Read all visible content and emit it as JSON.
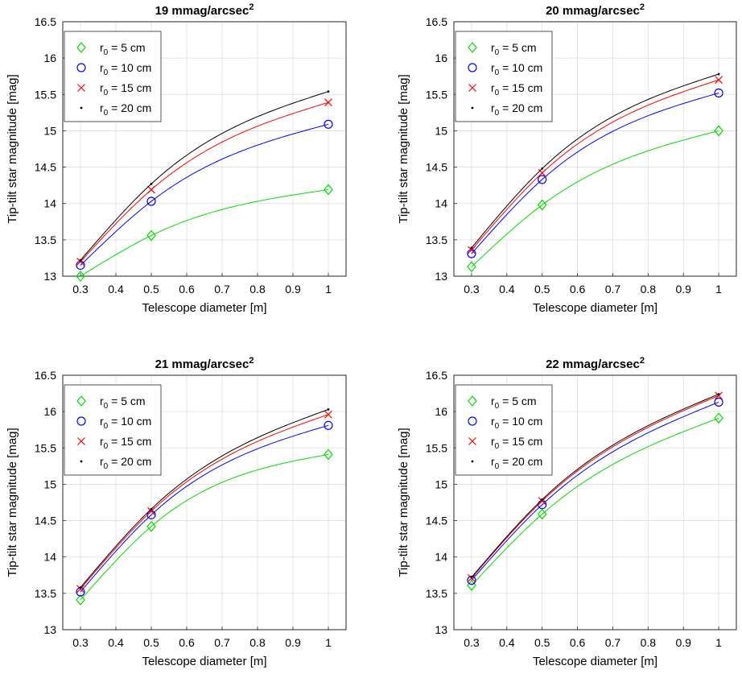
{
  "chart_data": [
    {
      "type": "line",
      "title": "19 mmag/arcsec",
      "title_sup": "2",
      "xlabel": "Telescope diameter [m]",
      "ylabel": "Tip-tilt star magnitude [mag]",
      "x": [
        0.3,
        0.5,
        1.0
      ],
      "xlim": [
        0.25,
        1.05
      ],
      "ylim": [
        13,
        16.5
      ],
      "xticks": [
        0.3,
        0.4,
        0.5,
        0.6,
        0.7,
        0.8,
        0.9,
        1
      ],
      "yticks": [
        13,
        13.5,
        14,
        14.5,
        15,
        15.5,
        16,
        16.5
      ],
      "xtick_labels": [
        "0.3",
        "0.4",
        "0.5",
        "0.6",
        "0.7",
        "0.8",
        "0.9",
        "1"
      ],
      "ytick_labels": [
        "13",
        "13.5",
        "14",
        "14.5",
        "15",
        "15.5",
        "16",
        "16.5"
      ],
      "grid": true,
      "legend_position": "top-left",
      "series": [
        {
          "name": "r0 = 5 cm",
          "legend_main": "r",
          "legend_sub": "0",
          "legend_rest": " = 5 cm",
          "marker": "diamond",
          "color": "#00dd00",
          "values": [
            13.0,
            13.56,
            14.19
          ]
        },
        {
          "name": "r0 = 10 cm",
          "legend_main": "r",
          "legend_sub": "0",
          "legend_rest": " = 10 cm",
          "marker": "circle",
          "color": "#0000ff",
          "values": [
            13.15,
            14.03,
            15.09
          ]
        },
        {
          "name": "r0 = 15 cm",
          "legend_main": "r",
          "legend_sub": "0",
          "legend_rest": " = 15 cm",
          "marker": "x",
          "color": "#ff0000",
          "values": [
            13.2,
            14.19,
            15.39
          ]
        },
        {
          "name": "r0 = 20 cm",
          "legend_main": "r",
          "legend_sub": "0",
          "legend_rest": " = 20 cm",
          "marker": "dot",
          "color": "#000000",
          "values": [
            13.22,
            14.27,
            15.54
          ]
        }
      ]
    },
    {
      "type": "line",
      "title": "20 mmag/arcsec",
      "title_sup": "2",
      "xlabel": "Telescope diameter [m]",
      "ylabel": "Tip-tilt star magnitude [mag]",
      "x": [
        0.3,
        0.5,
        1.0
      ],
      "xlim": [
        0.25,
        1.05
      ],
      "ylim": [
        13,
        16.5
      ],
      "xticks": [
        0.3,
        0.4,
        0.5,
        0.6,
        0.7,
        0.8,
        0.9,
        1
      ],
      "yticks": [
        13,
        13.5,
        14,
        14.5,
        15,
        15.5,
        16,
        16.5
      ],
      "xtick_labels": [
        "0.3",
        "0.4",
        "0.5",
        "0.6",
        "0.7",
        "0.8",
        "0.9",
        "1"
      ],
      "ytick_labels": [
        "13",
        "13.5",
        "14",
        "14.5",
        "15",
        "15.5",
        "16",
        "16.5"
      ],
      "grid": true,
      "legend_position": "top-left",
      "series": [
        {
          "name": "r0 = 5 cm",
          "legend_main": "r",
          "legend_sub": "0",
          "legend_rest": " = 5 cm",
          "marker": "diamond",
          "color": "#00dd00",
          "values": [
            13.13,
            13.98,
            15.0
          ]
        },
        {
          "name": "r0 = 10 cm",
          "legend_main": "r",
          "legend_sub": "0",
          "legend_rest": " = 10 cm",
          "marker": "circle",
          "color": "#0000ff",
          "values": [
            13.31,
            14.33,
            15.52
          ]
        },
        {
          "name": "r0 = 15 cm",
          "legend_main": "r",
          "legend_sub": "0",
          "legend_rest": " = 15 cm",
          "marker": "x",
          "color": "#ff0000",
          "values": [
            13.36,
            14.42,
            15.7
          ]
        },
        {
          "name": "r0 = 20 cm",
          "legend_main": "r",
          "legend_sub": "0",
          "legend_rest": " = 20 cm",
          "marker": "dot",
          "color": "#000000",
          "values": [
            13.39,
            14.48,
            15.78
          ]
        }
      ]
    },
    {
      "type": "line",
      "title": "21 mmag/arcsec",
      "title_sup": "2",
      "xlabel": "Telescope diameter [m]",
      "ylabel": "Tip-tilt star magnitude [mag]",
      "x": [
        0.3,
        0.5,
        1.0
      ],
      "xlim": [
        0.25,
        1.05
      ],
      "ylim": [
        13,
        16.5
      ],
      "xticks": [
        0.3,
        0.4,
        0.5,
        0.6,
        0.7,
        0.8,
        0.9,
        1
      ],
      "yticks": [
        13,
        13.5,
        14,
        14.5,
        15,
        15.5,
        16,
        16.5
      ],
      "xtick_labels": [
        "0.3",
        "0.4",
        "0.5",
        "0.6",
        "0.7",
        "0.8",
        "0.9",
        "1"
      ],
      "ytick_labels": [
        "13",
        "13.5",
        "14",
        "14.5",
        "15",
        "15.5",
        "16",
        "16.5"
      ],
      "grid": true,
      "legend_position": "top-left",
      "series": [
        {
          "name": "r0 = 5 cm",
          "legend_main": "r",
          "legend_sub": "0",
          "legend_rest": " = 5 cm",
          "marker": "diamond",
          "color": "#00dd00",
          "values": [
            13.41,
            14.42,
            15.41
          ]
        },
        {
          "name": "r0 = 10 cm",
          "legend_main": "r",
          "legend_sub": "0",
          "legend_rest": " = 10 cm",
          "marker": "circle",
          "color": "#0000ff",
          "values": [
            13.52,
            14.58,
            15.81
          ]
        },
        {
          "name": "r0 = 15 cm",
          "legend_main": "r",
          "legend_sub": "0",
          "legend_rest": " = 15 cm",
          "marker": "x",
          "color": "#ff0000",
          "values": [
            13.56,
            14.63,
            15.96
          ]
        },
        {
          "name": "r0 = 20 cm",
          "legend_main": "r",
          "legend_sub": "0",
          "legend_rest": " = 20 cm",
          "marker": "dot",
          "color": "#000000",
          "values": [
            13.58,
            14.66,
            16.03
          ]
        }
      ]
    },
    {
      "type": "line",
      "title": "22 mmag/arcsec",
      "title_sup": "2",
      "xlabel": "Telescope diameter [m]",
      "ylabel": "Tip-tilt star magnitude [mag]",
      "x": [
        0.3,
        0.5,
        1.0
      ],
      "xlim": [
        0.25,
        1.05
      ],
      "ylim": [
        13,
        16.5
      ],
      "xticks": [
        0.3,
        0.4,
        0.5,
        0.6,
        0.7,
        0.8,
        0.9,
        1
      ],
      "yticks": [
        13,
        13.5,
        14,
        14.5,
        15,
        15.5,
        16,
        16.5
      ],
      "xtick_labels": [
        "0.3",
        "0.4",
        "0.5",
        "0.6",
        "0.7",
        "0.8",
        "0.9",
        "1"
      ],
      "ytick_labels": [
        "13",
        "13.5",
        "14",
        "14.5",
        "15",
        "15.5",
        "16",
        "16.5"
      ],
      "grid": true,
      "legend_position": "top-left",
      "series": [
        {
          "name": "r0 = 5 cm",
          "legend_main": "r",
          "legend_sub": "0",
          "legend_rest": " = 5 cm",
          "marker": "diamond",
          "color": "#00dd00",
          "values": [
            13.61,
            14.59,
            15.91
          ]
        },
        {
          "name": "r0 = 10 cm",
          "legend_main": "r",
          "legend_sub": "0",
          "legend_rest": " = 10 cm",
          "marker": "circle",
          "color": "#0000ff",
          "values": [
            13.68,
            14.72,
            16.13
          ]
        },
        {
          "name": "r0 = 15 cm",
          "legend_main": "r",
          "legend_sub": "0",
          "legend_rest": " = 15 cm",
          "marker": "x",
          "color": "#ff0000",
          "values": [
            13.71,
            14.77,
            16.22
          ]
        },
        {
          "name": "r0 = 20 cm",
          "legend_main": "r",
          "legend_sub": "0",
          "legend_rest": " = 20 cm",
          "marker": "dot",
          "color": "#000000",
          "values": [
            13.72,
            14.79,
            16.24
          ]
        }
      ]
    }
  ]
}
